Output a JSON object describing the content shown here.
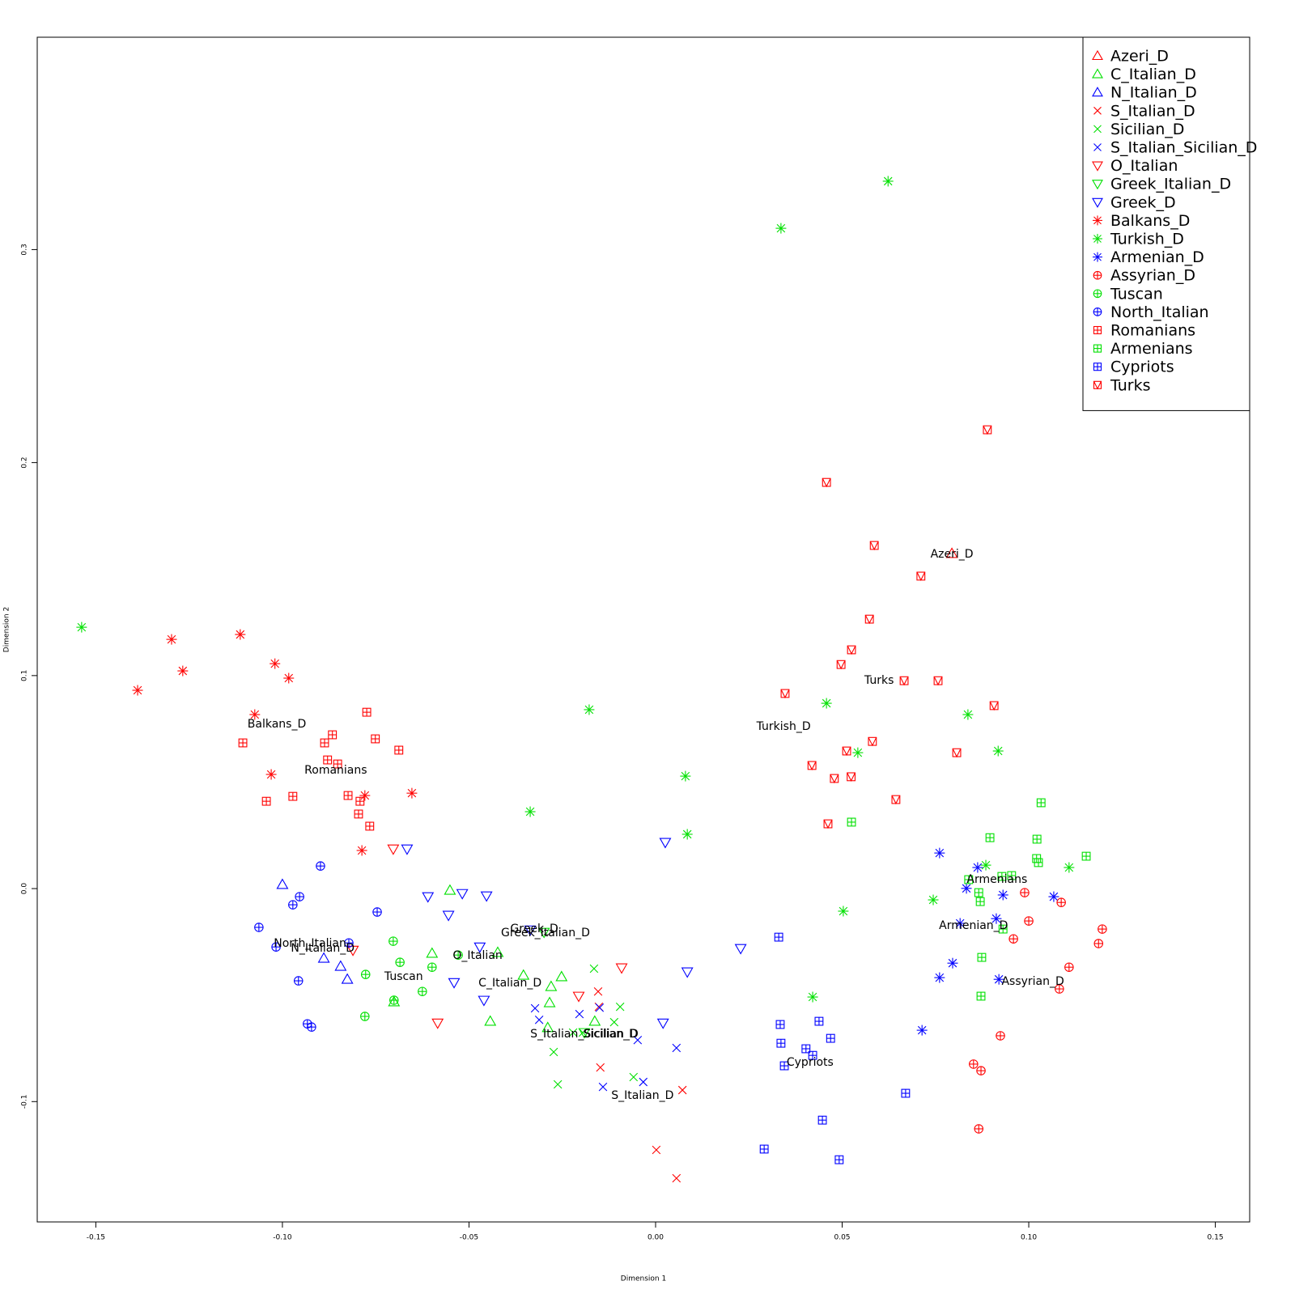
{
  "chart_data": {
    "type": "scatter",
    "x_label": "Dimension 1",
    "y_label": "Dimension 2",
    "xlim": [
      -0.1657,
      0.1592
    ],
    "ylim": [
      -0.1565,
      0.3997
    ],
    "xticks": [
      {
        "value": -0.15,
        "label": "-0.15"
      },
      {
        "value": -0.1,
        "label": "-0.10"
      },
      {
        "value": -0.05,
        "label": "-0.05"
      },
      {
        "value": 0,
        "label": "0.00"
      },
      {
        "value": 0.05,
        "label": "0.05"
      },
      {
        "value": 0.1,
        "label": "0.10"
      },
      {
        "value": 0.15,
        "label": "0.15"
      }
    ],
    "yticks": [
      -0.1,
      {
        "value": 0,
        "label": "0.0"
      },
      0.1,
      0.2,
      0.3
    ],
    "legend": "top-right",
    "series": [
      {
        "name": "Azeri_D",
        "color": "#ff0000",
        "marker": "triangle-up",
        "x": [
          0.0794
        ],
        "values": [
          0.1573
        ]
      },
      {
        "name": "C_Italian_D",
        "color": "#00e000",
        "marker": "triangle-up",
        "x": [
          -0.0551,
          -0.0599,
          -0.0423,
          -0.0354,
          -0.028,
          -0.0252,
          -0.0284,
          -0.0443,
          -0.0289,
          -0.0163,
          -0.0701
        ],
        "values": [
          -0.0008,
          -0.0304,
          -0.03,
          -0.0407,
          -0.046,
          -0.0414,
          -0.0536,
          -0.0623,
          -0.0653,
          -0.0623,
          -0.0532
        ]
      },
      {
        "name": "N_Italian_D",
        "color": "#0000ff",
        "marker": "triangle-up",
        "x": [
          -0.1,
          -0.0889,
          -0.0844,
          -0.0826
        ],
        "values": [
          0.0019,
          -0.0327,
          -0.0365,
          -0.0426
        ]
      },
      {
        "name": "S_Italian_D",
        "color": "#ff0000",
        "marker": "x",
        "x": [
          -0.0154,
          -0.0152,
          -0.0148,
          0.0072,
          0.0002,
          0.0056
        ],
        "values": [
          -0.0483,
          -0.0555,
          -0.084,
          -0.0946,
          -0.1227,
          -0.136
        ]
      },
      {
        "name": "Sicilian_D",
        "color": "#00e000",
        "marker": "x",
        "x": [
          -0.0165,
          -0.0095,
          -0.0111,
          -0.0195,
          -0.0273,
          -0.0262,
          -0.0059,
          -0.0221
        ],
        "values": [
          -0.0376,
          -0.0555,
          -0.0627,
          -0.0676,
          -0.0767,
          -0.0919,
          -0.0885,
          -0.0676
        ]
      },
      {
        "name": "S_Italian_Sicilian_D",
        "color": "#0000ff",
        "marker": "x",
        "x": [
          -0.0323,
          -0.0312,
          -0.0204,
          -0.015,
          -0.0048,
          0.0056,
          -0.0033,
          -0.0141
        ],
        "values": [
          -0.0562,
          -0.0616,
          -0.0589,
          -0.0559,
          -0.0711,
          -0.0748,
          -0.0908,
          -0.0931
        ]
      },
      {
        "name": "O_Italian",
        "color": "#ff0000",
        "marker": "triangle-down",
        "x": [
          -0.0703,
          -0.0811,
          -0.0584,
          -0.0206,
          -0.0091
        ],
        "values": [
          0.0186,
          -0.0289,
          -0.0631,
          -0.0505,
          -0.0372
        ]
      },
      {
        "name": "Greek_Italian_D",
        "color": "#00e000",
        "marker": "triangle-down",
        "x": [
          -0.0299,
          -0.0191
        ],
        "values": [
          -0.0205,
          -0.0676
        ]
      },
      {
        "name": "Greek_D",
        "color": "#0000ff",
        "marker": "triangle-down",
        "x": [
          -0.0666,
          -0.061,
          -0.0518,
          -0.0453,
          -0.0555,
          -0.0471,
          -0.054,
          -0.046,
          -0.0336,
          0.0026,
          0.0085,
          0.002,
          0.0228
        ],
        "values": [
          0.0186,
          -0.0038,
          -0.0023,
          -0.0034,
          -0.0125,
          -0.0274,
          -0.0441,
          -0.0524,
          -0.0194,
          0.0217,
          -0.0391,
          -0.0631,
          -0.0281
        ]
      },
      {
        "name": "Balkans_D",
        "color": "#ff0000",
        "marker": "asterisk",
        "x": [
          -0.1388,
          -0.1297,
          -0.1267,
          -0.1113,
          -0.102,
          -0.0983,
          -0.1074,
          -0.103,
          -0.0779,
          -0.0653,
          -0.0787
        ],
        "values": [
          0.0931,
          0.117,
          0.1022,
          0.1193,
          0.1056,
          0.0988,
          0.0817,
          0.0536,
          0.0437,
          0.0448,
          0.0179
        ]
      },
      {
        "name": "Turkish_D",
        "color": "#00e000",
        "marker": "asterisk",
        "x": [
          -0.1538,
          0.0623,
          0.0336,
          -0.0178,
          0.008,
          0.0085,
          -0.0336,
          0.0458,
          0.0542,
          0.0837,
          0.0918,
          0.0885,
          0.1108,
          0.0744,
          0.0503,
          0.0421
        ],
        "values": [
          0.1227,
          0.3321,
          0.31,
          0.084,
          0.0528,
          0.0255,
          0.0361,
          0.087,
          0.0638,
          0.0817,
          0.0646,
          0.011,
          0.0099,
          -0.0053,
          -0.0106,
          -0.0509
        ]
      },
      {
        "name": "Armenian_D",
        "color": "#0000ff",
        "marker": "asterisk",
        "x": [
          0.0761,
          0.0863,
          0.0833,
          0.0931,
          0.1067,
          0.0913,
          0.0816,
          0.0796,
          0.0761,
          0.092,
          0.0714
        ],
        "values": [
          0.0167,
          0.0099,
          0.0001,
          -0.003,
          -0.0038,
          -0.0141,
          -0.0163,
          -0.035,
          -0.0418,
          -0.0426,
          -0.0665
        ]
      },
      {
        "name": "Assyrian_D",
        "color": "#ff0000",
        "marker": "circle-plus",
        "x": [
          0.0989,
          0.1087,
          0.1,
          0.0959,
          0.1197,
          0.1187,
          0.1108,
          0.1082,
          0.0924,
          0.0852,
          0.0872,
          0.0866
        ],
        "values": [
          -0.0019,
          -0.0065,
          -0.0152,
          -0.0236,
          -0.019,
          -0.0258,
          -0.0369,
          -0.0471,
          -0.0691,
          -0.0824,
          -0.0855,
          -0.1128
        ]
      },
      {
        "name": "Tuscan",
        "color": "#00e000",
        "marker": "circle-plus",
        "x": [
          -0.0703,
          -0.0685,
          -0.0599,
          -0.0625,
          -0.0777,
          -0.0701,
          -0.0779,
          -0.0529
        ],
        "values": [
          -0.0247,
          -0.0346,
          -0.0369,
          -0.0483,
          -0.0403,
          -0.0524,
          -0.06,
          -0.0312
        ]
      },
      {
        "name": "North_Italian",
        "color": "#0000ff",
        "marker": "circle-plus",
        "x": [
          -0.0898,
          -0.0954,
          -0.0972,
          -0.1063,
          -0.1017,
          -0.0746,
          -0.0822,
          -0.0957,
          -0.0933,
          -0.0922
        ],
        "values": [
          0.0106,
          -0.0038,
          -0.0076,
          -0.0182,
          -0.0274,
          -0.011,
          -0.0255,
          -0.0433,
          -0.0635,
          -0.065
        ]
      },
      {
        "name": "Romanians",
        "color": "#ff0000",
        "marker": "square-plus",
        "x": [
          -0.1106,
          -0.0774,
          -0.0866,
          -0.0887,
          -0.0751,
          -0.0688,
          -0.0879,
          -0.0852,
          -0.1043,
          -0.0972,
          -0.0824,
          -0.0792,
          -0.0796,
          -0.0766
        ],
        "values": [
          0.0684,
          0.0828,
          0.0722,
          0.0684,
          0.0703,
          0.065,
          0.0604,
          0.0585,
          0.041,
          0.0433,
          0.0437,
          0.041,
          0.035,
          0.0293
        ]
      },
      {
        "name": "Armenians",
        "color": "#00e000",
        "marker": "square-plus",
        "x": [
          0.1033,
          0.0896,
          0.1022,
          0.0525,
          0.1021,
          0.1026,
          0.1154,
          0.0839,
          0.0928,
          0.0954,
          0.0866,
          0.087,
          0.0931,
          0.0874,
          0.0872
        ],
        "values": [
          0.0403,
          0.0239,
          0.0232,
          0.0312,
          0.0141,
          0.0122,
          0.0152,
          0.0042,
          0.0057,
          0.0061,
          -0.0019,
          -0.0061,
          -0.019,
          -0.0323,
          -0.0505
        ]
      },
      {
        "name": "Cypriots",
        "color": "#0000ff",
        "marker": "square-plus",
        "x": [
          0.033,
          0.0334,
          0.0438,
          0.0469,
          0.0336,
          0.0403,
          0.0421,
          0.0345,
          0.067,
          0.0447,
          0.0291,
          0.0492
        ],
        "values": [
          -0.0228,
          -0.0638,
          -0.0623,
          -0.0703,
          -0.0726,
          -0.0752,
          -0.0783,
          -0.0832,
          -0.0961,
          -0.1087,
          -0.1223,
          -0.1273
        ]
      },
      {
        "name": "Turks",
        "color": "#ff0000",
        "marker": "square-triangle",
        "x": [
          0.0889,
          0.0458,
          0.0586,
          0.0711,
          0.0573,
          0.0525,
          0.0497,
          0.0347,
          0.0666,
          0.0757,
          0.0907,
          0.0581,
          0.0419,
          0.0512,
          0.0807,
          0.0479,
          0.0524,
          0.0644,
          0.0462
        ],
        "values": [
          0.2154,
          0.1907,
          0.1611,
          0.1467,
          0.1265,
          0.1121,
          0.1052,
          0.0916,
          0.0976,
          0.0976,
          0.0859,
          0.0691,
          0.0578,
          0.0646,
          0.0638,
          0.0517,
          0.0525,
          0.0418,
          0.0304
        ]
      }
    ],
    "annotations": [
      {
        "text": "Azeri_D",
        "x": 0.0794,
        "y": 0.1569
      },
      {
        "text": "Turks",
        "x": 0.0599,
        "y": 0.0976
      },
      {
        "text": "Turkish_D",
        "x": 0.0343,
        "y": 0.076
      },
      {
        "text": "Balkans_D",
        "x": -0.1015,
        "y": 0.0771
      },
      {
        "text": "Romanians",
        "x": -0.0857,
        "y": 0.0555
      },
      {
        "text": "Armenians",
        "x": 0.0915,
        "y": 0.0042
      },
      {
        "text": "Armenian_D",
        "x": 0.0852,
        "y": -0.0175
      },
      {
        "text": "Assyrian_D",
        "x": 0.1011,
        "y": -0.0437
      },
      {
        "text": "Greek_D",
        "x": -0.0325,
        "y": -0.019
      },
      {
        "text": "Greek_Italian_D",
        "x": -0.0295,
        "y": -0.0209
      },
      {
        "text": "North_Italian",
        "x": -0.0926,
        "y": -0.0258
      },
      {
        "text": "N_Italian_D",
        "x": -0.0892,
        "y": -0.0281
      },
      {
        "text": "O_Italian",
        "x": -0.0477,
        "y": -0.0315
      },
      {
        "text": "Tuscan",
        "x": -0.0675,
        "y": -0.0414
      },
      {
        "text": "C_Italian_D",
        "x": -0.039,
        "y": -0.0445
      },
      {
        "text": "S_Italian_Sicilian_D",
        "x": -0.0191,
        "y": -0.0684
      },
      {
        "text": "Sicilian_D",
        "x": -0.0121,
        "y": -0.0684
      },
      {
        "text": "S_Italian_D",
        "x": -0.0035,
        "y": -0.0973
      },
      {
        "text": "Cypriots",
        "x": 0.0414,
        "y": -0.0817
      }
    ]
  }
}
